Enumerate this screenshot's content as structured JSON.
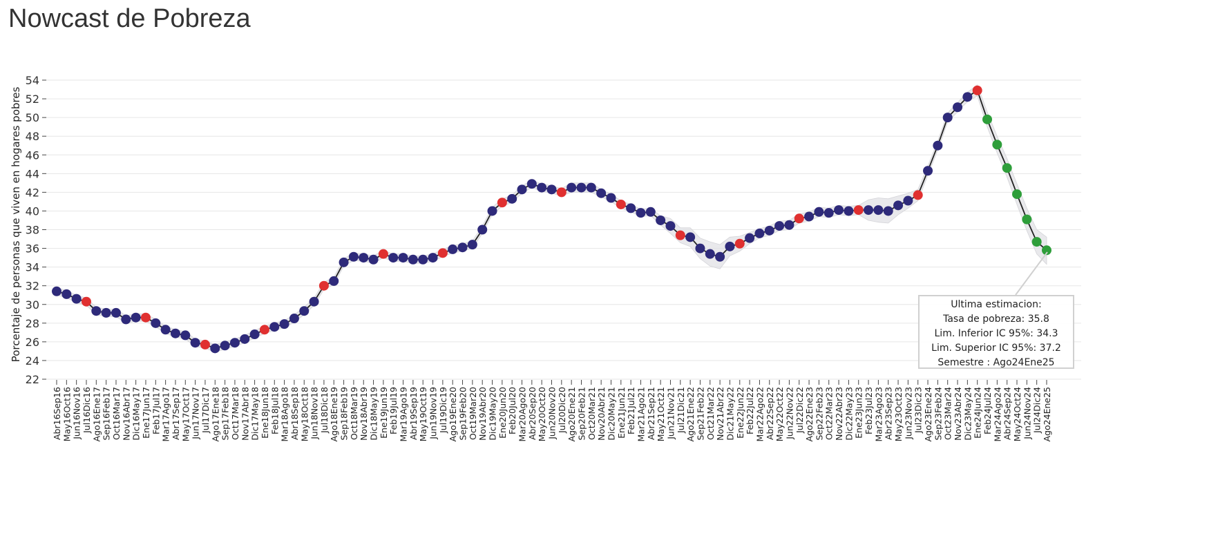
{
  "title": "Nowcast de Pobreza",
  "chart_data": {
    "type": "line",
    "title": "Nowcast de Pobreza",
    "ylabel": "Porcentaje de personas que viven en hogares pobres",
    "xlabel": "",
    "ylim": [
      22,
      54
    ],
    "yticks": [
      22,
      24,
      26,
      28,
      30,
      32,
      34,
      36,
      38,
      40,
      42,
      44,
      46,
      48,
      50,
      52,
      54
    ],
    "grid": true,
    "colors": {
      "observed_semester": "#e03030",
      "nowcast": "#2e2a7a",
      "forecast": "#2e9e3a",
      "line": "#222222",
      "band": "#e0e0e4"
    },
    "categories": [
      "Abr16Sep16",
      "May16Oct16",
      "Jun16Nov16",
      "Jul16Dic16",
      "Ago16Ene17",
      "Sep16Feb17",
      "Oct16Mar17",
      "Nov16Abr17",
      "Dic16May17",
      "Ene17Jun17",
      "Feb17Jul17",
      "Mar17Ago17",
      "Abr17Sep17",
      "May17Oct17",
      "Jun17Nov17",
      "Jul17Dic17",
      "Ago17Ene18",
      "Sep17Feb18",
      "Oct17Mar18",
      "Nov17Abr18",
      "Dic17May18",
      "Ene18Jun18",
      "Feb18Jul18",
      "Mar18Ago18",
      "Abr18Sep18",
      "May18Oct18",
      "Jun18Nov18",
      "Jul18Dic18",
      "Ago18Ene19",
      "Sep18Feb19",
      "Oct18Mar19",
      "Nov18Abr19",
      "Dic18May19",
      "Ene19Jun19",
      "Feb19Jul19",
      "Mar19Ago19",
      "Abr19Sep19",
      "May19Oct19",
      "Jun19Nov19",
      "Jul19Dic19",
      "Ago19Ene20",
      "Sep19Feb20",
      "Oct19Mar20",
      "Nov19Abr20",
      "Dic19May20",
      "Ene20Jun20",
      "Feb20Jul20",
      "Mar20Ago20",
      "Abr20Sep20",
      "May20Oct20",
      "Jun20Nov20",
      "Jul20Dic20",
      "Ago20Ene21",
      "Sep20Feb21",
      "Oct20Mar21",
      "Nov20Abr21",
      "Dic20May21",
      "Ene21Jun21",
      "Feb21Jul21",
      "Mar21Ago21",
      "Abr21Sep21",
      "May21Oct21",
      "Jun21Nov21",
      "Jul21Dic21",
      "Ago21Ene22",
      "Sep21Feb22",
      "Oct21Mar22",
      "Nov21Abr22",
      "Dic21May22",
      "Ene22Jun22",
      "Feb22Jul22",
      "Mar22Ago22",
      "Abr22Sep22",
      "May22Oct22",
      "Jun22Nov22",
      "Jul22Dic22",
      "Ago22Ene23",
      "Sep22Feb23",
      "Oct22Mar23",
      "Nov22Abr23",
      "Dic22May23",
      "Ene23Jun23",
      "Feb23Jul23",
      "Mar23Ago23",
      "Abr23Sep23",
      "May23Oct23",
      "Jun23Nov23",
      "Jul23Dic23",
      "Ago23Ene24",
      "Sep23Feb24",
      "Oct23Mar24",
      "Nov23Abr24",
      "Dic23May24",
      "Ene24Jun24",
      "Feb24Jul24",
      "Mar24Ago24",
      "Abr24Sep24",
      "May24Oct24",
      "Jun24Nov24",
      "Jul24Dic24",
      "Ago24Ene25"
    ],
    "values": [
      31.4,
      31.1,
      30.6,
      30.3,
      29.3,
      29.1,
      29.1,
      28.4,
      28.6,
      28.6,
      28.0,
      27.3,
      26.9,
      26.7,
      25.9,
      25.7,
      25.3,
      25.6,
      25.9,
      26.3,
      26.8,
      27.3,
      27.6,
      27.9,
      28.5,
      29.3,
      30.3,
      32.0,
      32.5,
      34.5,
      35.1,
      35.0,
      34.8,
      35.4,
      35.0,
      35.0,
      34.8,
      34.8,
      35.0,
      35.5,
      35.9,
      36.1,
      36.4,
      38.0,
      40.0,
      40.9,
      41.3,
      42.3,
      42.9,
      42.5,
      42.3,
      42.0,
      42.5,
      42.5,
      42.5,
      41.9,
      41.4,
      40.7,
      40.3,
      39.8,
      39.9,
      39.0,
      38.4,
      37.4,
      37.2,
      36.0,
      35.4,
      35.1,
      36.2,
      36.5,
      37.1,
      37.6,
      37.9,
      38.4,
      38.5,
      39.2,
      39.4,
      39.9,
      39.8,
      40.1,
      40.0,
      40.1,
      40.1,
      40.1,
      40.0,
      40.6,
      41.1,
      41.7,
      44.3,
      47.0,
      50.0,
      51.1,
      52.2,
      52.9,
      49.8,
      47.1,
      44.6,
      41.8,
      39.1,
      36.7,
      35.8
    ],
    "point_types": [
      "n",
      "n",
      "n",
      "s",
      "n",
      "n",
      "n",
      "n",
      "n",
      "s",
      "n",
      "n",
      "n",
      "n",
      "n",
      "s",
      "n",
      "n",
      "n",
      "n",
      "n",
      "s",
      "n",
      "n",
      "n",
      "n",
      "n",
      "s",
      "n",
      "n",
      "n",
      "n",
      "n",
      "s",
      "n",
      "n",
      "n",
      "n",
      "n",
      "s",
      "n",
      "n",
      "n",
      "n",
      "n",
      "s",
      "n",
      "n",
      "n",
      "n",
      "n",
      "s",
      "n",
      "n",
      "n",
      "n",
      "n",
      "s",
      "n",
      "n",
      "n",
      "n",
      "n",
      "s",
      "n",
      "n",
      "n",
      "n",
      "n",
      "s",
      "n",
      "n",
      "n",
      "n",
      "n",
      "s",
      "n",
      "n",
      "n",
      "n",
      "n",
      "s",
      "n",
      "n",
      "n",
      "n",
      "n",
      "s",
      "n",
      "n",
      "n",
      "n",
      "n",
      "s",
      "f",
      "f",
      "f",
      "f",
      "f",
      "f",
      "f"
    ],
    "ci_lower": [
      31.0,
      30.7,
      30.2,
      29.9,
      28.9,
      28.7,
      28.7,
      28.0,
      28.2,
      28.2,
      27.6,
      26.9,
      26.5,
      26.3,
      25.5,
      25.3,
      24.9,
      25.2,
      25.5,
      25.9,
      26.4,
      26.9,
      27.2,
      27.5,
      28.1,
      28.9,
      29.9,
      31.6,
      32.1,
      34.1,
      34.7,
      34.6,
      34.4,
      35.0,
      34.6,
      34.6,
      34.4,
      34.4,
      34.6,
      35.1,
      35.5,
      35.7,
      36.0,
      37.6,
      39.6,
      40.5,
      40.9,
      41.9,
      42.5,
      42.1,
      41.9,
      41.6,
      42.0,
      42.0,
      42.0,
      41.5,
      41.0,
      40.3,
      39.9,
      39.4,
      39.5,
      38.5,
      37.6,
      36.6,
      36.2,
      34.9,
      34.1,
      33.8,
      35.2,
      35.7,
      36.5,
      37.1,
      37.4,
      37.9,
      38.0,
      38.7,
      38.9,
      39.4,
      39.3,
      39.6,
      39.5,
      39.6,
      39.0,
      38.8,
      38.7,
      39.6,
      40.3,
      41.1,
      43.8,
      46.5,
      49.5,
      50.6,
      51.7,
      52.3,
      49.0,
      46.2,
      43.6,
      40.7,
      37.9,
      35.4,
      34.3
    ],
    "ci_upper": [
      31.8,
      31.5,
      31.0,
      30.7,
      29.7,
      29.5,
      29.5,
      28.8,
      29.0,
      29.0,
      28.4,
      27.7,
      27.3,
      27.1,
      26.3,
      26.1,
      25.7,
      26.0,
      26.3,
      26.7,
      27.2,
      27.7,
      28.0,
      28.3,
      28.9,
      29.7,
      30.7,
      32.4,
      32.9,
      34.9,
      35.5,
      35.4,
      35.2,
      35.8,
      35.4,
      35.4,
      35.2,
      35.2,
      35.4,
      35.9,
      36.3,
      36.5,
      36.8,
      38.4,
      40.4,
      41.3,
      41.7,
      42.7,
      43.3,
      42.9,
      42.7,
      42.4,
      43.0,
      43.0,
      43.0,
      42.3,
      41.8,
      41.1,
      40.7,
      40.2,
      40.3,
      39.5,
      39.2,
      38.2,
      38.2,
      37.1,
      36.7,
      36.4,
      37.2,
      37.3,
      37.7,
      38.1,
      38.4,
      38.9,
      39.0,
      39.7,
      39.9,
      40.4,
      40.3,
      40.6,
      40.5,
      40.6,
      41.2,
      41.4,
      41.3,
      41.6,
      41.9,
      42.3,
      44.8,
      47.5,
      50.5,
      51.6,
      52.7,
      53.5,
      50.6,
      48.0,
      45.6,
      42.9,
      40.3,
      38.0,
      37.2
    ]
  },
  "annotation": {
    "line1": "Ultima estimacion:",
    "line2": "Tasa de pobreza:  35.8",
    "line3": "Lim. Inferior IC 95%:  34.3",
    "line4": "Lim. Superior IC 95%:  37.2",
    "line5": "Semestre : Ago24Ene25"
  }
}
